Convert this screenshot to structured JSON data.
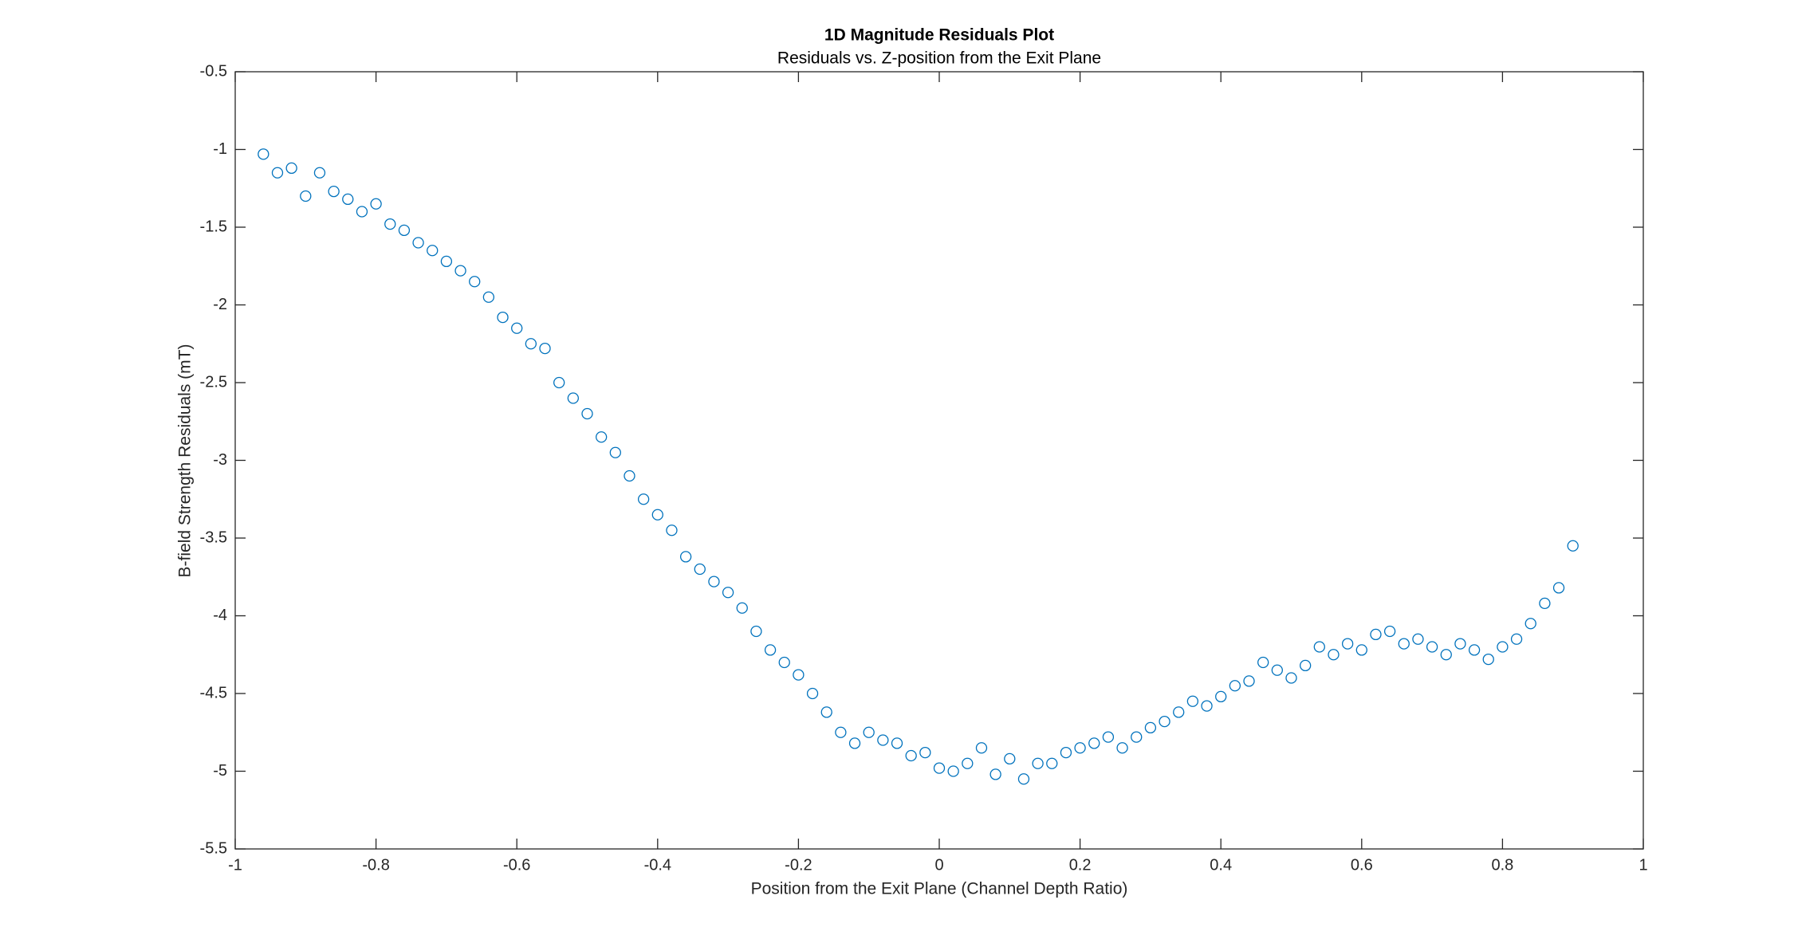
{
  "chart_data": {
    "type": "scatter",
    "title": "1D Magnitude Residuals Plot",
    "subtitle": "Residuals vs. Z-position from the Exit Plane",
    "xlabel": "Position from the Exit Plane (Channel Depth Ratio)",
    "ylabel": "B-field Strength Residuals (mT)",
    "xlim": [
      -1,
      1
    ],
    "ylim": [
      -5.5,
      -0.5
    ],
    "xticks": [
      -1,
      -0.8,
      -0.6,
      -0.4,
      -0.2,
      0,
      0.2,
      0.4,
      0.6,
      0.8,
      1
    ],
    "yticks": [
      -5.5,
      -5,
      -4.5,
      -4,
      -3.5,
      -3,
      -2.5,
      -2,
      -1.5,
      -1,
      -0.5
    ],
    "color": "#0072bd",
    "x": [
      -0.96,
      -0.94,
      -0.92,
      -0.9,
      -0.88,
      -0.86,
      -0.84,
      -0.82,
      -0.8,
      -0.78,
      -0.76,
      -0.74,
      -0.72,
      -0.7,
      -0.68,
      -0.66,
      -0.64,
      -0.62,
      -0.6,
      -0.58,
      -0.56,
      -0.54,
      -0.52,
      -0.5,
      -0.48,
      -0.46,
      -0.44,
      -0.42,
      -0.4,
      -0.38,
      -0.36,
      -0.34,
      -0.32,
      -0.3,
      -0.28,
      -0.26,
      -0.24,
      -0.22,
      -0.2,
      -0.18,
      -0.16,
      -0.14,
      -0.12,
      -0.1,
      -0.08,
      -0.06,
      -0.04,
      -0.02,
      0.0,
      0.02,
      0.04,
      0.06,
      0.08,
      0.1,
      0.12,
      0.14,
      0.16,
      0.18,
      0.2,
      0.22,
      0.24,
      0.26,
      0.28,
      0.3,
      0.32,
      0.34,
      0.36,
      0.38,
      0.4,
      0.42,
      0.44,
      0.46,
      0.48,
      0.5,
      0.52,
      0.54,
      0.56,
      0.58,
      0.6,
      0.62,
      0.64,
      0.66,
      0.68,
      0.7,
      0.72,
      0.74,
      0.76,
      0.78,
      0.8,
      0.82,
      0.84,
      0.86,
      0.88,
      0.9
    ],
    "values": [
      -1.03,
      -1.15,
      -1.12,
      -1.3,
      -1.15,
      -1.27,
      -1.32,
      -1.4,
      -1.35,
      -1.48,
      -1.52,
      -1.6,
      -1.65,
      -1.72,
      -1.78,
      -1.85,
      -1.95,
      -2.08,
      -2.15,
      -2.25,
      -2.28,
      -2.5,
      -2.6,
      -2.7,
      -2.85,
      -2.95,
      -3.1,
      -3.25,
      -3.35,
      -3.45,
      -3.62,
      -3.7,
      -3.78,
      -3.85,
      -3.95,
      -4.1,
      -4.22,
      -4.3,
      -4.38,
      -4.5,
      -4.62,
      -4.75,
      -4.82,
      -4.75,
      -4.8,
      -4.82,
      -4.9,
      -4.88,
      -4.98,
      -5.0,
      -4.95,
      -4.85,
      -5.02,
      -4.92,
      -5.05,
      -4.95,
      -4.95,
      -4.88,
      -4.85,
      -4.82,
      -4.78,
      -4.85,
      -4.78,
      -4.72,
      -4.68,
      -4.62,
      -4.55,
      -4.58,
      -4.52,
      -4.45,
      -4.42,
      -4.3,
      -4.35,
      -4.4,
      -4.32,
      -4.2,
      -4.25,
      -4.18,
      -4.22,
      -4.12,
      -4.1,
      -4.18,
      -4.15,
      -4.2,
      -4.25,
      -4.18,
      -4.22,
      -4.28,
      -4.2,
      -4.15,
      -4.05,
      -3.92,
      -3.82,
      -3.55
    ]
  }
}
